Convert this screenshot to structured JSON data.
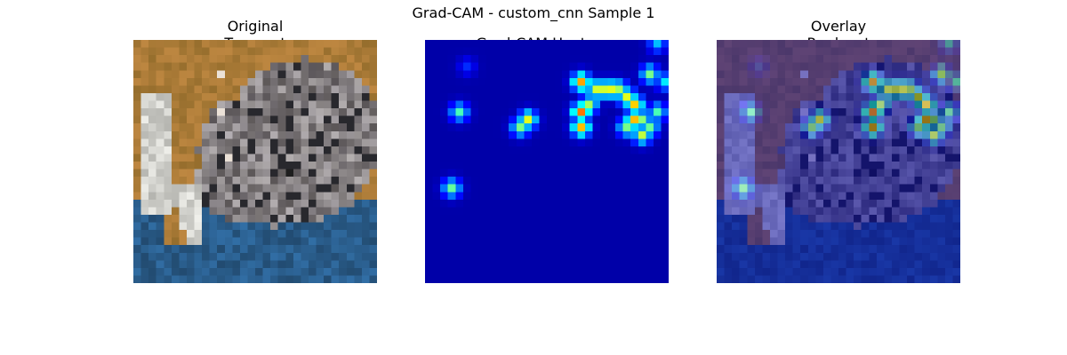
{
  "chart_data": {
    "type": "heatmap",
    "title": "Grad-CAM - custom_cnn Sample 1",
    "grid_size": [
      32,
      32
    ],
    "colormap": "jet",
    "panels": [
      {
        "title_lines": [
          "Original",
          "True: cat"
        ],
        "kind": "image"
      },
      {
        "title_lines": [
          "Grad-CAM Heatmap"
        ],
        "kind": "heatmap"
      },
      {
        "title_lines": [
          "Overlay",
          "Pred: cat"
        ],
        "kind": "overlay"
      }
    ],
    "hotspots": [
      {
        "col": 20,
        "row": 5,
        "value": 0.75
      },
      {
        "col": 20,
        "row": 9,
        "value": 0.8
      },
      {
        "col": 20,
        "row": 11,
        "value": 0.72
      },
      {
        "col": 21,
        "row": 8,
        "value": 0.55
      },
      {
        "col": 22,
        "row": 6,
        "value": 0.6
      },
      {
        "col": 23,
        "row": 6,
        "value": 0.6
      },
      {
        "col": 24,
        "row": 6,
        "value": 0.62
      },
      {
        "col": 25,
        "row": 6,
        "value": 0.55
      },
      {
        "col": 26,
        "row": 7,
        "value": 0.62
      },
      {
        "col": 27,
        "row": 8,
        "value": 0.7
      },
      {
        "col": 27,
        "row": 10,
        "value": 0.72
      },
      {
        "col": 26,
        "row": 11,
        "value": 0.5
      },
      {
        "col": 28,
        "row": 10,
        "value": 0.52
      },
      {
        "col": 28,
        "row": 12,
        "value": 0.58
      },
      {
        "col": 29,
        "row": 11,
        "value": 0.48
      },
      {
        "col": 30,
        "row": 9,
        "value": 0.45
      },
      {
        "col": 29,
        "row": 4,
        "value": 0.5
      },
      {
        "col": 31,
        "row": 5,
        "value": 0.35
      },
      {
        "col": 30,
        "row": 0,
        "value": 0.3
      },
      {
        "col": 13,
        "row": 10,
        "value": 0.62
      },
      {
        "col": 12,
        "row": 11,
        "value": 0.5
      },
      {
        "col": 4,
        "row": 9,
        "value": 0.45
      },
      {
        "col": 3,
        "row": 19,
        "value": 0.48
      },
      {
        "col": 5,
        "row": 3,
        "value": 0.14
      }
    ]
  }
}
